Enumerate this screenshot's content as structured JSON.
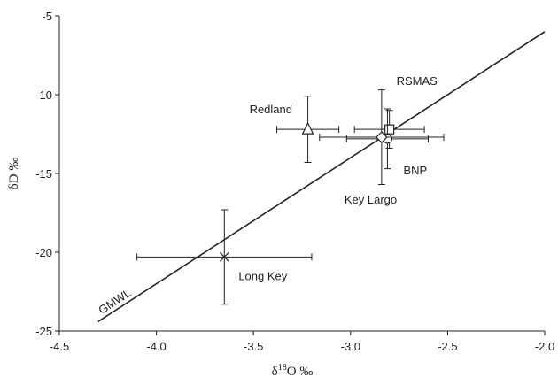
{
  "chart_data": {
    "type": "scatter",
    "xlabel": {
      "prefix": "δ",
      "sup": "18",
      "suffix": "O ‰"
    },
    "ylabel": "δD ‰",
    "xlim": [
      -4.5,
      -2.0
    ],
    "ylim": [
      -25,
      -5
    ],
    "xticks": [
      -4.5,
      {
        "value": -4,
        "label": "-4.0"
      },
      -3.5,
      {
        "value": -3,
        "label": "-3.0"
      },
      -2.5,
      {
        "value": -2,
        "label": "-2.0"
      }
    ],
    "yticks": [
      -25,
      -20,
      -15,
      -10,
      -5
    ],
    "color": "#222222",
    "series": [
      {
        "name": "Redland",
        "marker": "triangle",
        "x": [
          -3.22
        ],
        "values": [
          -12.2
        ],
        "xerr": [
          0.16
        ],
        "yerr": [
          2.1
        ]
      },
      {
        "name": "RSMAS",
        "marker": "square",
        "x": [
          -2.8
        ],
        "values": [
          -12.2
        ],
        "xerr": [
          0.18
        ],
        "yerr": [
          1.2
        ]
      },
      {
        "name": "BNP",
        "marker": "circle",
        "x": [
          -2.81
        ],
        "values": [
          -12.8
        ],
        "xerr": [
          0.21
        ],
        "yerr": [
          1.9
        ]
      },
      {
        "name": "Key Largo",
        "marker": "diamond",
        "x": [
          -2.84
        ],
        "values": [
          -12.7
        ],
        "xerr": [
          0.32
        ],
        "yerr": [
          3.0
        ]
      },
      {
        "name": "Long Key",
        "marker": "x",
        "x": [
          -3.65
        ],
        "values": [
          -20.3
        ],
        "xerr": [
          0.45
        ],
        "yerr": [
          3.0
        ]
      }
    ],
    "lines": [
      {
        "name": "GMWL",
        "x": [
          -4.3,
          -2.0
        ],
        "values": [
          -24.4,
          -6.0
        ]
      }
    ]
  }
}
